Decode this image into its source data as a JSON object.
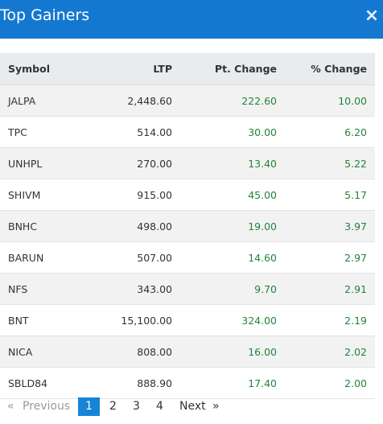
{
  "header": {
    "title": "Top Gainers",
    "close_icon": "×"
  },
  "table": {
    "columns": [
      "Symbol",
      "LTP",
      "Pt. Change",
      "% Change"
    ],
    "rows": [
      [
        "JALPA",
        "2,448.60",
        "222.60",
        "10.00"
      ],
      [
        "TPC",
        "514.00",
        "30.00",
        "6.20"
      ],
      [
        "UNHPL",
        "270.00",
        "13.40",
        "5.22"
      ],
      [
        "SHIVM",
        "915.00",
        "45.00",
        "5.17"
      ],
      [
        "BNHC",
        "498.00",
        "19.00",
        "3.97"
      ],
      [
        "BARUN",
        "507.00",
        "14.60",
        "2.97"
      ],
      [
        "NFS",
        "343.00",
        "9.70",
        "2.91"
      ],
      [
        "BNT",
        "15,100.00",
        "324.00",
        "2.19"
      ],
      [
        "NICA",
        "808.00",
        "16.00",
        "2.02"
      ],
      [
        "SBLD84",
        "888.90",
        "17.40",
        "2.00"
      ]
    ]
  },
  "pagination": {
    "prev_arrow": "«",
    "prev_label": "Previous",
    "pages": [
      "1",
      "2",
      "3",
      "4"
    ],
    "current_page": "1",
    "next_label": "Next",
    "next_arrow": "»"
  },
  "colors": {
    "header_bg": "#1478d0",
    "positive": "#23843a",
    "active_page": "#1785d6"
  }
}
